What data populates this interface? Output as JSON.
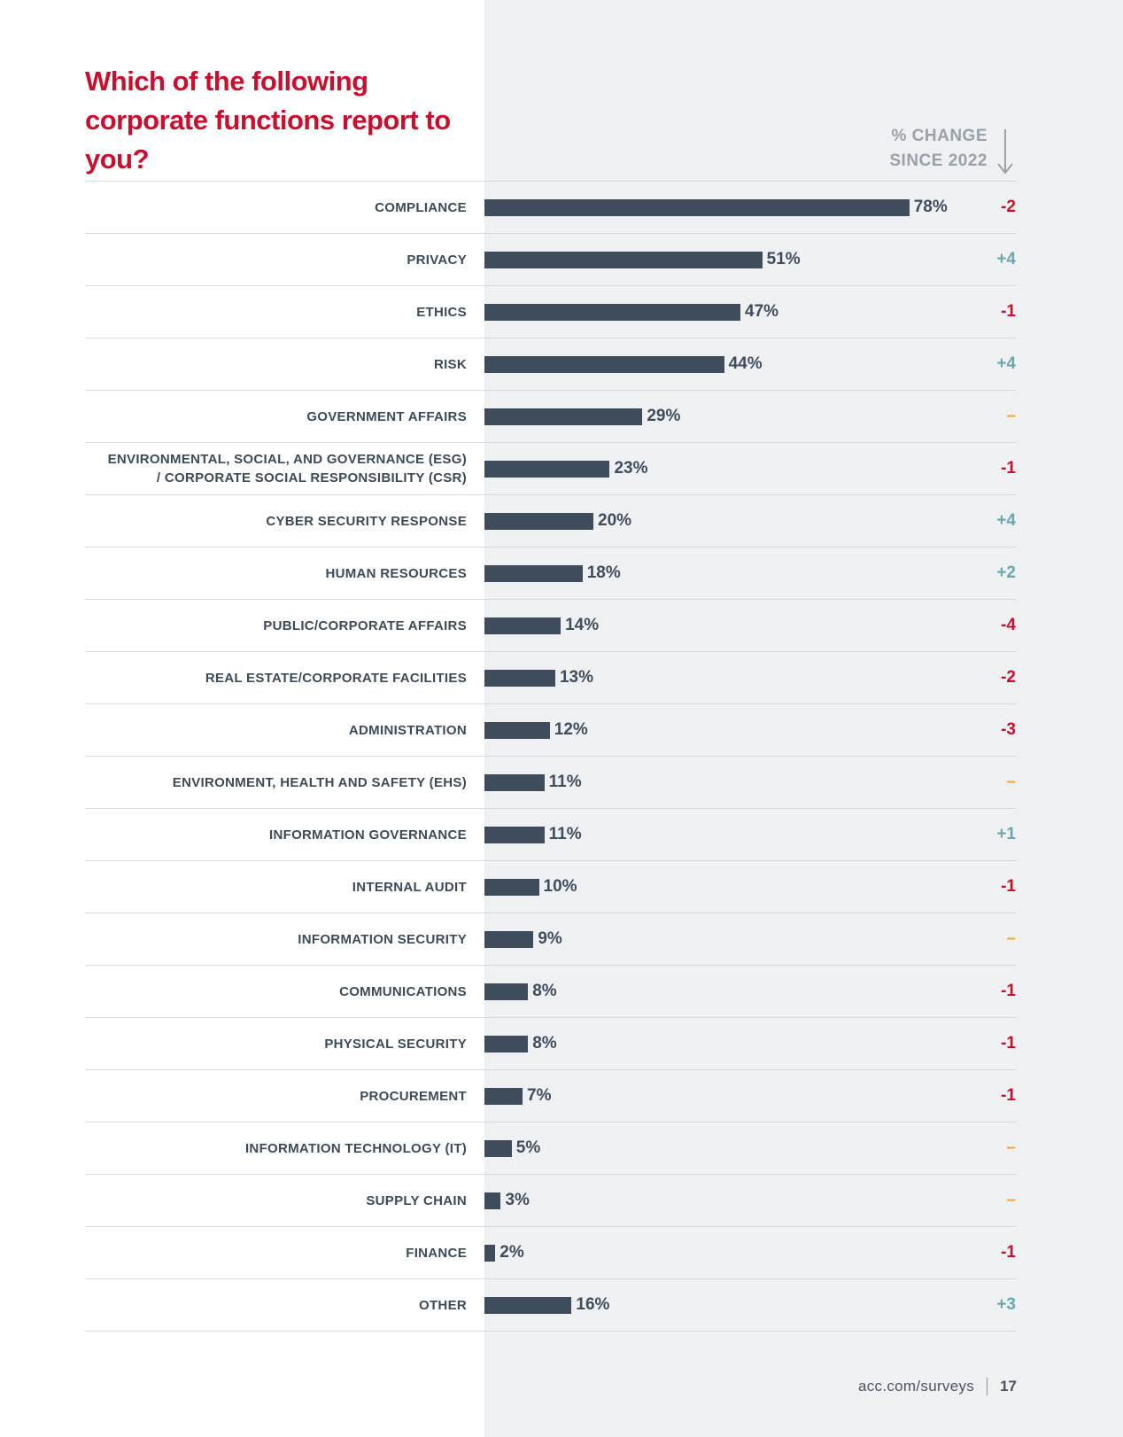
{
  "colors": {
    "title": "#c8102e",
    "bar": "#3f4c5c",
    "negative": "#c8102e",
    "positive": "#6aa6ad",
    "neutral": "#f0a92e",
    "panel": "#eff0f2"
  },
  "title": "Which of the following corporate functions report to you?",
  "change_header": {
    "line1": "% CHANGE",
    "line2": "SINCE 2022",
    "icon": "arrow-down-icon"
  },
  "chart_data": {
    "type": "bar",
    "orientation": "horizontal",
    "title": "Which of the following corporate functions report to you?",
    "xlim": [
      0,
      100
    ],
    "categories": [
      "COMPLIANCE",
      "PRIVACY",
      "ETHICS",
      "RISK",
      "GOVERNMENT AFFAIRS",
      "ENVIRONMENTAL, SOCIAL, AND GOVERNANCE (ESG) / CORPORATE SOCIAL RESPONSIBILITY (CSR)",
      "CYBER SECURITY RESPONSE",
      "HUMAN RESOURCES",
      "PUBLIC/CORPORATE AFFAIRS",
      "REAL ESTATE/CORPORATE FACILITIES",
      "ADMINISTRATION",
      "ENVIRONMENT, HEALTH AND SAFETY (EHS)",
      "INFORMATION GOVERNANCE",
      "INTERNAL AUDIT",
      "INFORMATION SECURITY",
      "COMMUNICATIONS",
      "PHYSICAL SECURITY",
      "PROCUREMENT",
      "INFORMATION TECHNOLOGY (IT)",
      "SUPPLY CHAIN",
      "FINANCE",
      "OTHER"
    ],
    "values": [
      78,
      51,
      47,
      44,
      29,
      23,
      20,
      18,
      14,
      13,
      12,
      11,
      11,
      10,
      9,
      8,
      8,
      7,
      5,
      3,
      2,
      16
    ],
    "value_labels": [
      "78%",
      "51%",
      "47%",
      "44%",
      "29%",
      "23%",
      "20%",
      "18%",
      "14%",
      "13%",
      "12%",
      "11%",
      "11%",
      "10%",
      "9%",
      "8%",
      "8%",
      "7%",
      "5%",
      "3%",
      "2%",
      "16%"
    ],
    "change_since_2022": [
      "-2",
      "+4",
      "-1",
      "+4",
      "–",
      "-1",
      "+4",
      "+2",
      "-4",
      "-2",
      "-3",
      "–",
      "+1",
      "-1",
      "–",
      "-1",
      "-1",
      "-1",
      "–",
      "–",
      "-1",
      "+3"
    ]
  },
  "footer": {
    "url": "acc.com/surveys",
    "page": "17"
  }
}
